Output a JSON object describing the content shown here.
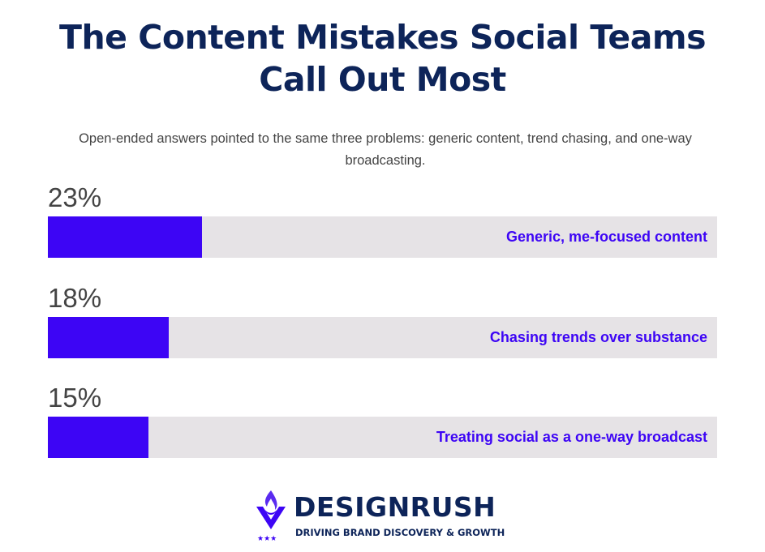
{
  "chart_data": {
    "type": "bar",
    "orientation": "horizontal",
    "title": "The Content Mistakes Social Teams Call Out Most",
    "subtitle": "Open-ended answers pointed to the same three problems: generic content, trend chasing, and one-way broadcasting.",
    "categories": [
      "Generic, me-focused content",
      "Chasing trends over substance",
      "Treating social as a one-way broadcast"
    ],
    "values": [
      23,
      18,
      15
    ],
    "value_labels": [
      "23%",
      "18%",
      "15%"
    ],
    "xlim": [
      0,
      100
    ],
    "grid": false,
    "colors": {
      "fill": "#3d05f5",
      "track": "#e6e3e6",
      "title": "#0d2459"
    }
  },
  "brand": {
    "name": "DESIGNRUSH",
    "tagline": "DRIVING BRAND DISCOVERY & GROWTH",
    "icon": "flame-v-logo-icon"
  }
}
